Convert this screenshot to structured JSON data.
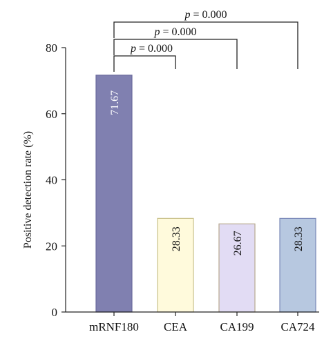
{
  "chart_data": {
    "type": "bar",
    "categories": [
      "mRNF180",
      "CEA",
      "CA199",
      "CA724"
    ],
    "values": [
      71.67,
      28.33,
      26.67,
      28.33
    ],
    "value_labels": [
      "71.67",
      "28.33",
      "26.67",
      "28.33"
    ],
    "ylabel": "Positive detection rate (%)",
    "ylim": [
      0,
      80
    ],
    "yticks": [
      0,
      20,
      40,
      60,
      80
    ],
    "grid": false,
    "bar_colors": [
      "#8080b0",
      "#fffadc",
      "#e2dcf4",
      "#b7c8e0"
    ],
    "bar_edge_colors": [
      "#6a6a9c",
      "#c9c08a",
      "#b8a88e",
      "#7a88b8"
    ],
    "label_colors": [
      "#ffffff",
      "#111111",
      "#111111",
      "#111111"
    ],
    "comparisons": [
      {
        "from": "mRNF180",
        "to": "CEA",
        "p_symbol": "p",
        "p_text": " = 0.000"
      },
      {
        "from": "mRNF180",
        "to": "CA199",
        "p_symbol": "p",
        "p_text": " = 0.000"
      },
      {
        "from": "mRNF180",
        "to": "CA724",
        "p_symbol": "p",
        "p_text": " = 0.000"
      }
    ]
  }
}
